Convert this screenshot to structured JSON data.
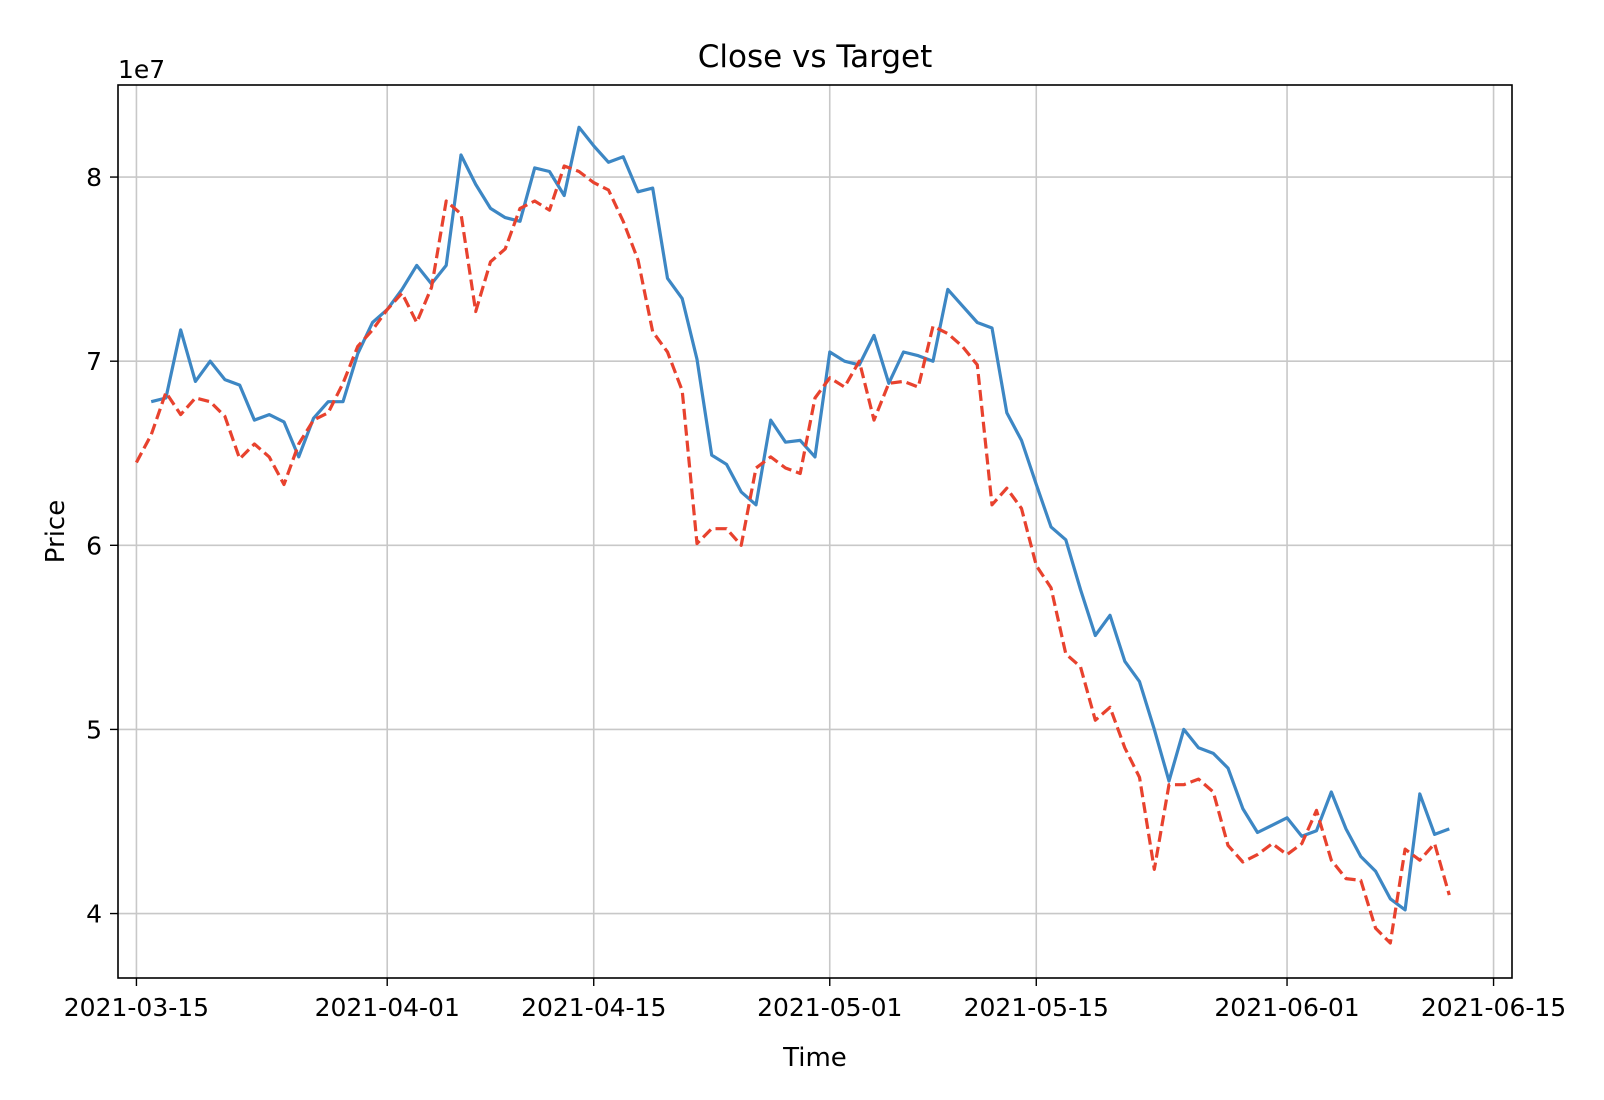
{
  "chart_data": {
    "type": "line",
    "title": "Close vs Target",
    "xlabel": "Time",
    "ylabel": "Price",
    "y_offset_label": "1e7",
    "y_scale_factor": 10000000,
    "grid": true,
    "xlim": [
      "2021-03-15",
      "2021-06-15"
    ],
    "ylim": [
      36500000,
      85000000
    ],
    "x_ticks": [
      {
        "date": "2021-03-15",
        "label": "2021-03-15"
      },
      {
        "date": "2021-04-01",
        "label": "2021-04-01"
      },
      {
        "date": "2021-04-15",
        "label": "2021-04-15"
      },
      {
        "date": "2021-05-01",
        "label": "2021-05-01"
      },
      {
        "date": "2021-05-15",
        "label": "2021-05-15"
      },
      {
        "date": "2021-06-01",
        "label": "2021-06-01"
      },
      {
        "date": "2021-06-15",
        "label": "2021-06-15"
      }
    ],
    "y_ticks": [
      {
        "value": 40000000,
        "label": "4"
      },
      {
        "value": 50000000,
        "label": "5"
      },
      {
        "value": 60000000,
        "label": "6"
      },
      {
        "value": 70000000,
        "label": "7"
      },
      {
        "value": 80000000,
        "label": "8"
      }
    ],
    "series": [
      {
        "style": "solid",
        "color": "#3d87c4",
        "points": [
          [
            "2021-03-16",
            67800000
          ],
          [
            "2021-03-17",
            68000000
          ],
          [
            "2021-03-18",
            71700000
          ],
          [
            "2021-03-19",
            68900000
          ],
          [
            "2021-03-20",
            70000000
          ],
          [
            "2021-03-21",
            69000000
          ],
          [
            "2021-03-22",
            68700000
          ],
          [
            "2021-03-23",
            66800000
          ],
          [
            "2021-03-24",
            67100000
          ],
          [
            "2021-03-25",
            66700000
          ],
          [
            "2021-03-26",
            64800000
          ],
          [
            "2021-03-27",
            66900000
          ],
          [
            "2021-03-28",
            67800000
          ],
          [
            "2021-03-29",
            67800000
          ],
          [
            "2021-03-30",
            70400000
          ],
          [
            "2021-03-31",
            72100000
          ],
          [
            "2021-04-01",
            72800000
          ],
          [
            "2021-04-02",
            73900000
          ],
          [
            "2021-04-03",
            75200000
          ],
          [
            "2021-04-04",
            74200000
          ],
          [
            "2021-04-05",
            75200000
          ],
          [
            "2021-04-06",
            81200000
          ],
          [
            "2021-04-07",
            79600000
          ],
          [
            "2021-04-08",
            78300000
          ],
          [
            "2021-04-09",
            77800000
          ],
          [
            "2021-04-10",
            77600000
          ],
          [
            "2021-04-11",
            80500000
          ],
          [
            "2021-04-12",
            80300000
          ],
          [
            "2021-04-13",
            79000000
          ],
          [
            "2021-04-14",
            82700000
          ],
          [
            "2021-04-15",
            81700000
          ],
          [
            "2021-04-16",
            80800000
          ],
          [
            "2021-04-17",
            81100000
          ],
          [
            "2021-04-18",
            79200000
          ],
          [
            "2021-04-19",
            79400000
          ],
          [
            "2021-04-20",
            74500000
          ],
          [
            "2021-04-21",
            73400000
          ],
          [
            "2021-04-22",
            70100000
          ],
          [
            "2021-04-23",
            64900000
          ],
          [
            "2021-04-24",
            64400000
          ],
          [
            "2021-04-25",
            62900000
          ],
          [
            "2021-04-26",
            62200000
          ],
          [
            "2021-04-27",
            66800000
          ],
          [
            "2021-04-28",
            65600000
          ],
          [
            "2021-04-29",
            65700000
          ],
          [
            "2021-04-30",
            64800000
          ],
          [
            "2021-05-01",
            70500000
          ],
          [
            "2021-05-02",
            70000000
          ],
          [
            "2021-05-03",
            69800000
          ],
          [
            "2021-05-04",
            71400000
          ],
          [
            "2021-05-05",
            68800000
          ],
          [
            "2021-05-06",
            70500000
          ],
          [
            "2021-05-07",
            70300000
          ],
          [
            "2021-05-08",
            70000000
          ],
          [
            "2021-05-09",
            73900000
          ],
          [
            "2021-05-10",
            73000000
          ],
          [
            "2021-05-11",
            72100000
          ],
          [
            "2021-05-12",
            71800000
          ],
          [
            "2021-05-13",
            67200000
          ],
          [
            "2021-05-14",
            65700000
          ],
          [
            "2021-05-15",
            63300000
          ],
          [
            "2021-05-16",
            61000000
          ],
          [
            "2021-05-17",
            60300000
          ],
          [
            "2021-05-18",
            57600000
          ],
          [
            "2021-05-19",
            55100000
          ],
          [
            "2021-05-20",
            56200000
          ],
          [
            "2021-05-21",
            53700000
          ],
          [
            "2021-05-22",
            52600000
          ],
          [
            "2021-05-23",
            50000000
          ],
          [
            "2021-05-24",
            47200000
          ],
          [
            "2021-05-25",
            50000000
          ],
          [
            "2021-05-26",
            49000000
          ],
          [
            "2021-05-27",
            48700000
          ],
          [
            "2021-05-28",
            47900000
          ],
          [
            "2021-05-29",
            45700000
          ],
          [
            "2021-05-30",
            44400000
          ],
          [
            "2021-05-31",
            44800000
          ],
          [
            "2021-06-01",
            45200000
          ],
          [
            "2021-06-02",
            44200000
          ],
          [
            "2021-06-03",
            44500000
          ],
          [
            "2021-06-04",
            46600000
          ],
          [
            "2021-06-05",
            44600000
          ],
          [
            "2021-06-06",
            43100000
          ],
          [
            "2021-06-07",
            42300000
          ],
          [
            "2021-06-08",
            40800000
          ],
          [
            "2021-06-09",
            40200000
          ],
          [
            "2021-06-10",
            46500000
          ],
          [
            "2021-06-11",
            44300000
          ],
          [
            "2021-06-12",
            44600000
          ]
        ]
      },
      {
        "style": "dashed",
        "color": "#e8422e",
        "points": [
          [
            "2021-03-15",
            64500000
          ],
          [
            "2021-03-16",
            66000000
          ],
          [
            "2021-03-17",
            68300000
          ],
          [
            "2021-03-18",
            67100000
          ],
          [
            "2021-03-19",
            68000000
          ],
          [
            "2021-03-20",
            67800000
          ],
          [
            "2021-03-21",
            67000000
          ],
          [
            "2021-03-22",
            64700000
          ],
          [
            "2021-03-23",
            65500000
          ],
          [
            "2021-03-24",
            64800000
          ],
          [
            "2021-03-25",
            63300000
          ],
          [
            "2021-03-26",
            65500000
          ],
          [
            "2021-03-27",
            66800000
          ],
          [
            "2021-03-28",
            67200000
          ],
          [
            "2021-03-29",
            68800000
          ],
          [
            "2021-03-30",
            70800000
          ],
          [
            "2021-03-31",
            71700000
          ],
          [
            "2021-04-01",
            72800000
          ],
          [
            "2021-04-02",
            73700000
          ],
          [
            "2021-04-03",
            72100000
          ],
          [
            "2021-04-04",
            74000000
          ],
          [
            "2021-04-05",
            78700000
          ],
          [
            "2021-04-06",
            78000000
          ],
          [
            "2021-04-07",
            72700000
          ],
          [
            "2021-04-08",
            75400000
          ],
          [
            "2021-04-09",
            76100000
          ],
          [
            "2021-04-10",
            78300000
          ],
          [
            "2021-04-11",
            78700000
          ],
          [
            "2021-04-12",
            78200000
          ],
          [
            "2021-04-13",
            80600000
          ],
          [
            "2021-04-14",
            80300000
          ],
          [
            "2021-04-15",
            79700000
          ],
          [
            "2021-04-16",
            79300000
          ],
          [
            "2021-04-17",
            77600000
          ],
          [
            "2021-04-18",
            75500000
          ],
          [
            "2021-04-19",
            71600000
          ],
          [
            "2021-04-20",
            70500000
          ],
          [
            "2021-04-21",
            68400000
          ],
          [
            "2021-04-22",
            60100000
          ],
          [
            "2021-04-23",
            60900000
          ],
          [
            "2021-04-24",
            60900000
          ],
          [
            "2021-04-25",
            60000000
          ],
          [
            "2021-04-26",
            64200000
          ],
          [
            "2021-04-27",
            64800000
          ],
          [
            "2021-04-28",
            64200000
          ],
          [
            "2021-04-29",
            63900000
          ],
          [
            "2021-04-30",
            68000000
          ],
          [
            "2021-05-01",
            69100000
          ],
          [
            "2021-05-02",
            68600000
          ],
          [
            "2021-05-03",
            70000000
          ],
          [
            "2021-05-04",
            66800000
          ],
          [
            "2021-05-05",
            68800000
          ],
          [
            "2021-05-06",
            68900000
          ],
          [
            "2021-05-07",
            68600000
          ],
          [
            "2021-05-08",
            71900000
          ],
          [
            "2021-05-09",
            71500000
          ],
          [
            "2021-05-10",
            70800000
          ],
          [
            "2021-05-11",
            69800000
          ],
          [
            "2021-05-12",
            62200000
          ],
          [
            "2021-05-13",
            63100000
          ],
          [
            "2021-05-14",
            62000000
          ],
          [
            "2021-05-15",
            58900000
          ],
          [
            "2021-05-16",
            57700000
          ],
          [
            "2021-05-17",
            54100000
          ],
          [
            "2021-05-18",
            53400000
          ],
          [
            "2021-05-19",
            50500000
          ],
          [
            "2021-05-20",
            51200000
          ],
          [
            "2021-05-21",
            49000000
          ],
          [
            "2021-05-22",
            47400000
          ],
          [
            "2021-05-23",
            42400000
          ],
          [
            "2021-05-24",
            47000000
          ],
          [
            "2021-05-25",
            47000000
          ],
          [
            "2021-05-26",
            47300000
          ],
          [
            "2021-05-27",
            46600000
          ],
          [
            "2021-05-28",
            43700000
          ],
          [
            "2021-05-29",
            42800000
          ],
          [
            "2021-05-30",
            43200000
          ],
          [
            "2021-05-31",
            43800000
          ],
          [
            "2021-06-01",
            43200000
          ],
          [
            "2021-06-02",
            43800000
          ],
          [
            "2021-06-03",
            45600000
          ],
          [
            "2021-06-04",
            42900000
          ],
          [
            "2021-06-05",
            41900000
          ],
          [
            "2021-06-06",
            41800000
          ],
          [
            "2021-06-07",
            39200000
          ],
          [
            "2021-06-08",
            38400000
          ],
          [
            "2021-06-09",
            43500000
          ],
          [
            "2021-06-10",
            42900000
          ],
          [
            "2021-06-11",
            43800000
          ],
          [
            "2021-06-12",
            41000000
          ]
        ]
      }
    ]
  }
}
